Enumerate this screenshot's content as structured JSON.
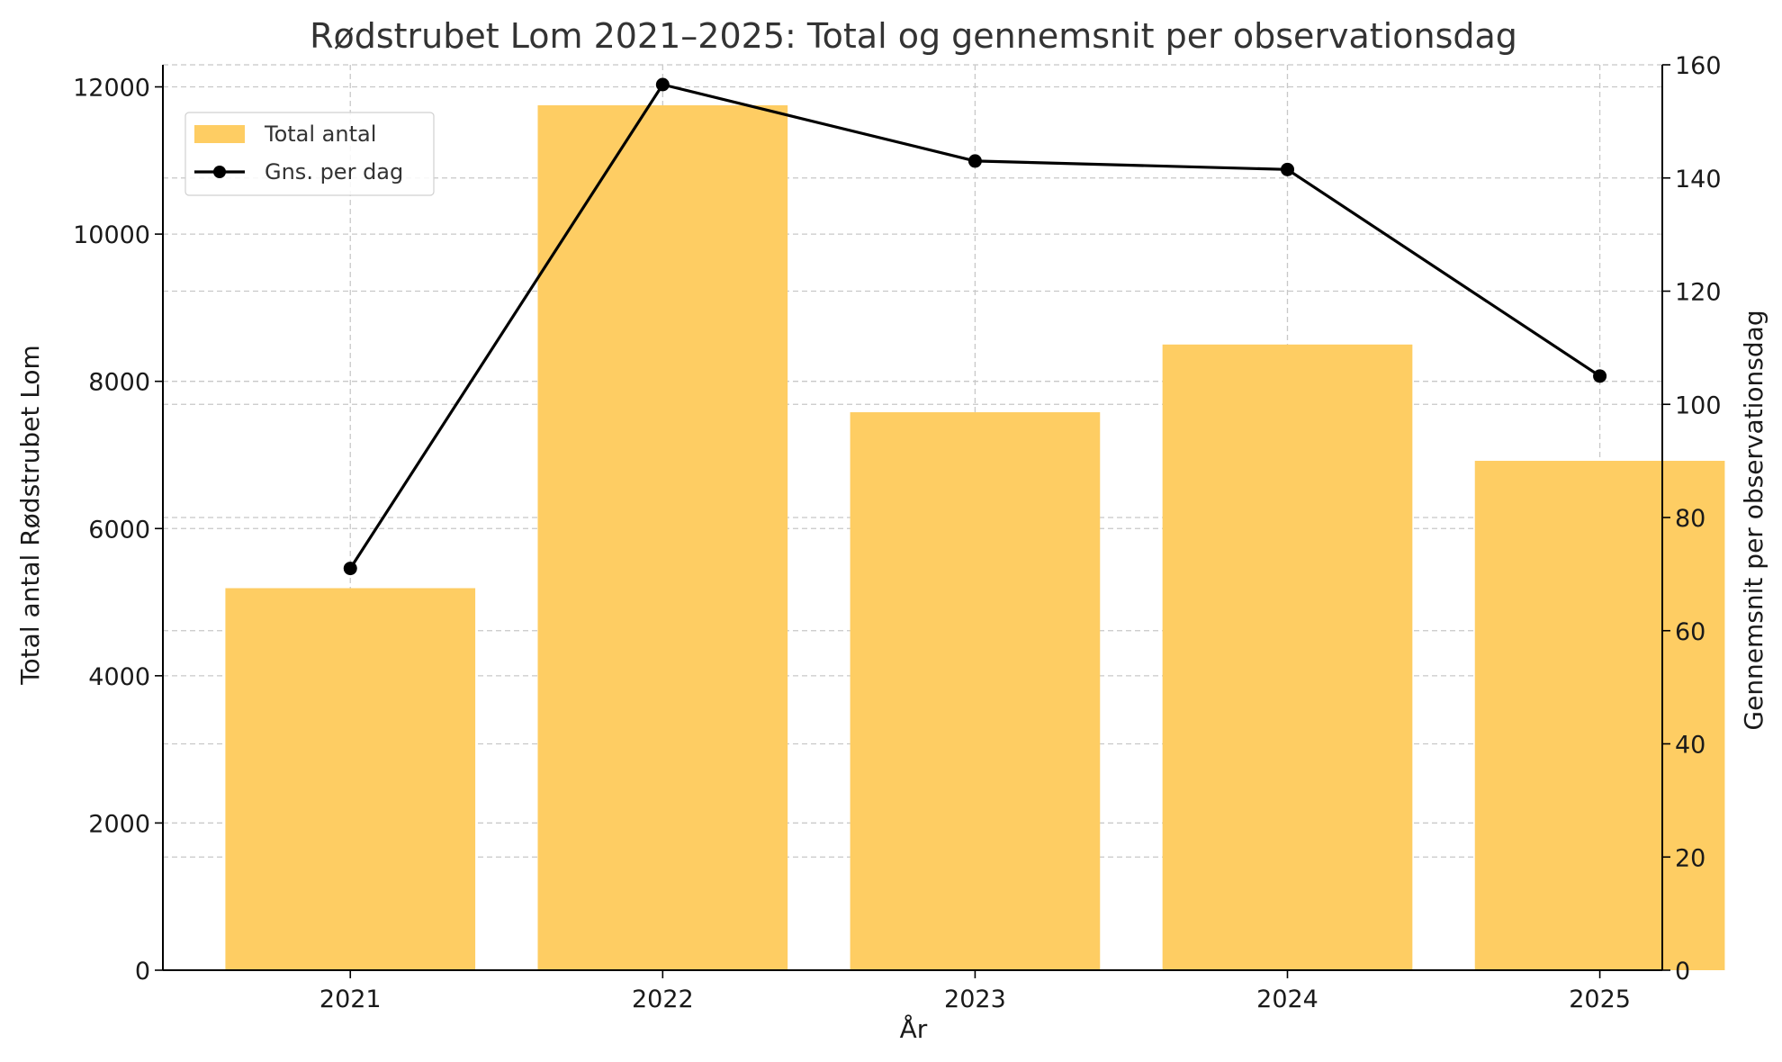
{
  "chart_data": {
    "type": "bar",
    "title": "Rødstrubet Lom 2021–2025: Total og gennemsnit per observationsdag",
    "xlabel": "År",
    "ylabel": "Total antal Rødstrubet Lom",
    "ylabel_right": "Gennemsnit per observationsdag",
    "categories": [
      "2021",
      "2022",
      "2023",
      "2024",
      "2025"
    ],
    "ylim": [
      0,
      12300
    ],
    "y_ticks": [
      0,
      2000,
      4000,
      6000,
      8000,
      10000,
      12000
    ],
    "ylim_right": [
      0,
      160
    ],
    "y_ticks_right": [
      0,
      20,
      40,
      60,
      80,
      100,
      120,
      140,
      160
    ],
    "grid": true,
    "legend_position": "upper-left",
    "series": [
      {
        "name": "Total antal",
        "type": "bar",
        "axis": "left",
        "color": "#FECD63",
        "values": [
          5190,
          11750,
          7580,
          8500,
          6920
        ]
      },
      {
        "name": "Gns. per dag",
        "type": "line",
        "axis": "right",
        "color": "#000000",
        "marker": "circle",
        "values": [
          71,
          156.5,
          143,
          141.5,
          105
        ]
      }
    ]
  }
}
